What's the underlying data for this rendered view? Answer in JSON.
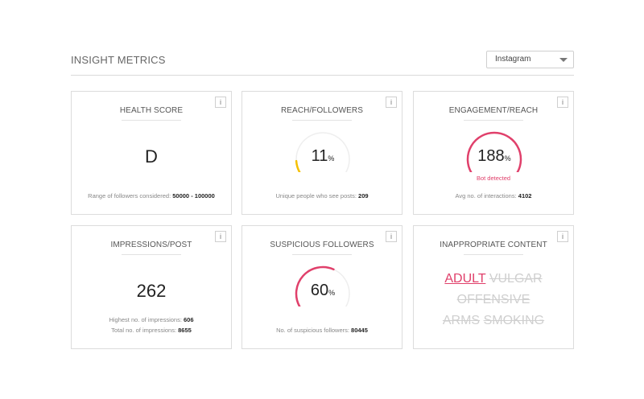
{
  "header": {
    "title": "INSIGHT METRICS",
    "platform_selected": "Instagram"
  },
  "info_label": "i",
  "cards": {
    "health": {
      "title": "HEALTH SCORE",
      "value": "D",
      "footer_label": "Range of followers considered:",
      "footer_value": "50000 - 100000"
    },
    "reach": {
      "title": "REACH/FOLLOWERS",
      "value": "11",
      "unit": "%",
      "gauge_fraction": 0.11,
      "gauge_color": "#f5c000",
      "footer_label": "Unique people who see posts:",
      "footer_value": "209"
    },
    "engagement": {
      "title": "ENGAGEMENT/REACH",
      "value": "188",
      "unit": "%",
      "gauge_fraction": 1.0,
      "gauge_color": "#e0406b",
      "status": "Bot detected",
      "footer_label": "Avg no. of interactions:",
      "footer_value": "4102"
    },
    "impressions": {
      "title": "IMPRESSIONS/POST",
      "value": "262",
      "line1_label": "Highest no. of impressions:",
      "line1_value": "606",
      "line2_label": "Total no. of impressions:",
      "line2_value": "8655"
    },
    "suspicious": {
      "title": "SUSPICIOUS FOLLOWERS",
      "value": "60",
      "unit": "%",
      "gauge_fraction": 0.6,
      "gauge_color": "#e0406b",
      "footer_label": "No. of suspicious followers:",
      "footer_value": "80445"
    },
    "inappropriate": {
      "title": "INAPPROPRIATE CONTENT",
      "words": {
        "adult": "ADULT",
        "vulgar": "VULGAR",
        "offensive": "OFFENSIVE",
        "arms": "ARMS",
        "smoking": "SMOKING"
      }
    }
  },
  "colors": {
    "accent": "#e0406b",
    "warning": "#f5c000",
    "track": "#eeeeee"
  }
}
